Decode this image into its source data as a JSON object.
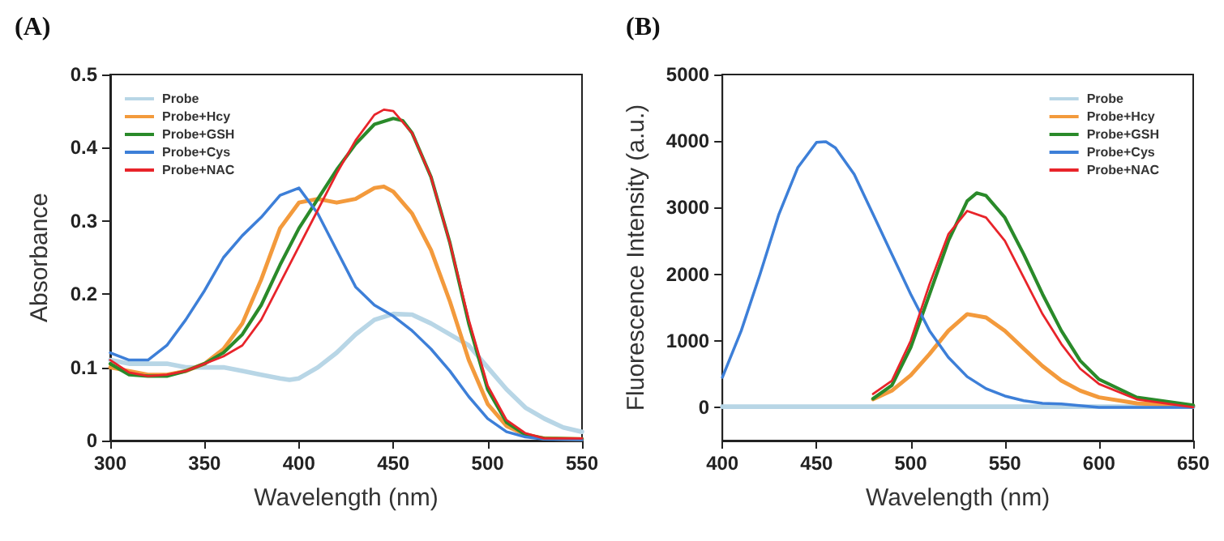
{
  "chart_data": [
    {
      "type": "line",
      "title": "(A)",
      "xlabel": "Wavelength (nm)",
      "ylabel": "Absorbance",
      "xlim": [
        300,
        550
      ],
      "xticks": [
        300,
        350,
        400,
        450,
        500,
        550
      ],
      "ylim": [
        0,
        0.5
      ],
      "yticks": [
        0.0,
        0.1,
        0.2,
        0.3,
        0.4,
        0.5
      ],
      "legend": "top left",
      "grid": false,
      "marker": "none",
      "line_style": "solid",
      "series": [
        {
          "name": "Probe",
          "color": "#b8d6e6",
          "x": [
            300,
            310,
            320,
            330,
            340,
            350,
            360,
            370,
            380,
            390,
            395,
            400,
            410,
            420,
            430,
            440,
            450,
            460,
            470,
            480,
            490,
            500,
            510,
            520,
            530,
            540,
            550
          ],
          "values": [
            0.11,
            0.105,
            0.105,
            0.105,
            0.1,
            0.1,
            0.1,
            0.095,
            0.09,
            0.085,
            0.083,
            0.085,
            0.1,
            0.12,
            0.145,
            0.165,
            0.173,
            0.172,
            0.16,
            0.145,
            0.13,
            0.1,
            0.07,
            0.045,
            0.03,
            0.018,
            0.012
          ]
        },
        {
          "name": "Probe+Hcy",
          "color": "#f39a3c",
          "x": [
            300,
            310,
            320,
            330,
            340,
            350,
            360,
            370,
            380,
            390,
            400,
            410,
            420,
            430,
            440,
            445,
            450,
            460,
            470,
            480,
            490,
            500,
            510,
            520,
            530,
            550
          ],
          "values": [
            0.1,
            0.095,
            0.09,
            0.09,
            0.095,
            0.105,
            0.125,
            0.16,
            0.22,
            0.29,
            0.325,
            0.33,
            0.325,
            0.33,
            0.345,
            0.347,
            0.34,
            0.31,
            0.26,
            0.19,
            0.11,
            0.05,
            0.02,
            0.008,
            0.003,
            0.002
          ]
        },
        {
          "name": "Probe+GSH",
          "color": "#2a8a2a",
          "x": [
            300,
            310,
            320,
            330,
            340,
            350,
            360,
            370,
            380,
            390,
            400,
            410,
            420,
            430,
            440,
            450,
            455,
            460,
            470,
            480,
            490,
            500,
            510,
            520,
            530,
            550
          ],
          "values": [
            0.105,
            0.09,
            0.088,
            0.088,
            0.095,
            0.105,
            0.12,
            0.145,
            0.185,
            0.24,
            0.29,
            0.33,
            0.37,
            0.405,
            0.432,
            0.44,
            0.437,
            0.42,
            0.36,
            0.27,
            0.16,
            0.07,
            0.025,
            0.008,
            0.003,
            0.002
          ]
        },
        {
          "name": "Probe+Cys",
          "color": "#3d7fd8",
          "x": [
            300,
            310,
            320,
            330,
            340,
            350,
            360,
            370,
            380,
            390,
            400,
            410,
            420,
            430,
            440,
            450,
            460,
            470,
            480,
            490,
            500,
            510,
            520,
            530,
            550
          ],
          "values": [
            0.12,
            0.11,
            0.11,
            0.13,
            0.165,
            0.205,
            0.25,
            0.28,
            0.305,
            0.335,
            0.345,
            0.31,
            0.26,
            0.21,
            0.185,
            0.17,
            0.15,
            0.125,
            0.095,
            0.06,
            0.03,
            0.012,
            0.005,
            0.002,
            0.001
          ]
        },
        {
          "name": "Probe+NAC",
          "color": "#e8242a",
          "x": [
            300,
            310,
            320,
            330,
            340,
            350,
            360,
            370,
            380,
            390,
            400,
            410,
            420,
            430,
            440,
            445,
            450,
            460,
            470,
            480,
            490,
            500,
            510,
            520,
            530,
            550
          ],
          "values": [
            0.11,
            0.093,
            0.088,
            0.09,
            0.095,
            0.105,
            0.115,
            0.13,
            0.165,
            0.215,
            0.265,
            0.315,
            0.365,
            0.41,
            0.445,
            0.452,
            0.45,
            0.42,
            0.36,
            0.27,
            0.165,
            0.075,
            0.028,
            0.01,
            0.003,
            0.003
          ]
        }
      ]
    },
    {
      "type": "line",
      "title": "(B)",
      "xlabel": "Wavelength (nm)",
      "ylabel": "Fluorescence Intensity (a.u.)",
      "xlim": [
        400,
        650
      ],
      "xticks": [
        400,
        450,
        500,
        550,
        600,
        650
      ],
      "ylim": [
        -500,
        5000
      ],
      "yticks": [
        0,
        1000,
        2000,
        3000,
        4000,
        5000
      ],
      "legend": "top right",
      "grid": false,
      "marker": "none",
      "line_style": "solid",
      "series": [
        {
          "name": "Probe",
          "color": "#b8d6e6",
          "x": [
            400,
            450,
            500,
            550,
            600,
            650
          ],
          "values": [
            10,
            10,
            10,
            10,
            10,
            10
          ]
        },
        {
          "name": "Probe+Hcy",
          "color": "#f39a3c",
          "x": [
            480,
            490,
            500,
            510,
            520,
            530,
            540,
            550,
            560,
            570,
            580,
            590,
            600,
            620,
            650
          ],
          "values": [
            120,
            250,
            480,
            800,
            1150,
            1400,
            1350,
            1150,
            880,
            620,
            400,
            250,
            150,
            60,
            20
          ]
        },
        {
          "name": "Probe+GSH",
          "color": "#2a8a2a",
          "x": [
            480,
            490,
            500,
            510,
            520,
            530,
            535,
            540,
            550,
            560,
            570,
            580,
            590,
            600,
            620,
            650
          ],
          "values": [
            130,
            330,
            900,
            1700,
            2500,
            3100,
            3220,
            3180,
            2850,
            2300,
            1700,
            1150,
            700,
            420,
            150,
            30
          ]
        },
        {
          "name": "Probe+Cys",
          "color": "#3d7fd8",
          "x": [
            400,
            410,
            420,
            430,
            440,
            450,
            455,
            460,
            470,
            480,
            490,
            500,
            510,
            520,
            530,
            540,
            550,
            560,
            570,
            580,
            600,
            620,
            650
          ],
          "values": [
            450,
            1150,
            2000,
            2900,
            3600,
            3980,
            3990,
            3900,
            3500,
            2900,
            2300,
            1700,
            1150,
            750,
            460,
            280,
            170,
            100,
            60,
            50,
            0,
            0,
            0
          ]
        },
        {
          "name": "Probe+NAC",
          "color": "#e8242a",
          "x": [
            480,
            490,
            500,
            510,
            520,
            530,
            540,
            550,
            560,
            570,
            580,
            590,
            600,
            620,
            650
          ],
          "values": [
            200,
            400,
            1000,
            1850,
            2600,
            2950,
            2850,
            2500,
            1950,
            1400,
            950,
            580,
            350,
            120,
            0
          ]
        }
      ]
    }
  ]
}
